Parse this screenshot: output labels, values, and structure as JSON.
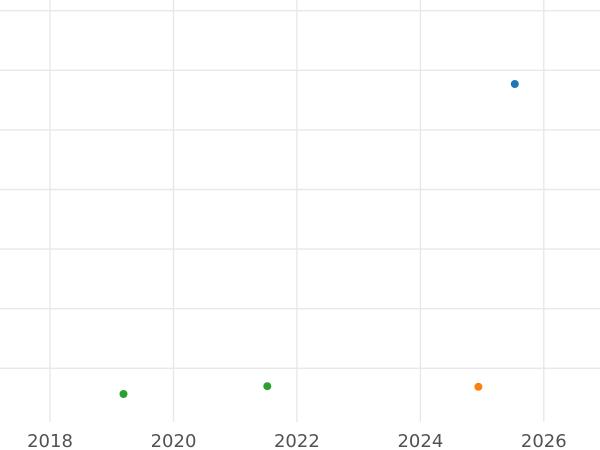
{
  "chart_data": {
    "type": "scatter",
    "title": "",
    "xlabel": "",
    "ylabel": "",
    "grid": true,
    "legend_position": "none",
    "y_axis_tick_labels_visible": false,
    "y_unit": "gridline-units (y axis unlabeled in image; bottom gridline = 0, one unit per gridline)",
    "x_ticks": [
      2018,
      2020,
      2022,
      2024,
      2026
    ],
    "x_tick_labels": [
      "2018",
      "2020",
      "2022",
      "2024",
      "2026"
    ],
    "x_range": [
      2017.19,
      2026.91
    ],
    "y_range": [
      -0.37,
      7.18
    ],
    "y_gridlines": [
      1,
      2,
      3,
      4,
      5,
      6,
      7
    ],
    "y_plot_min": 0.1,
    "series": [
      {
        "name": "blue-series",
        "color": "#1f77b4",
        "points": [
          {
            "x": 2025.53,
            "y": 5.77
          }
        ]
      },
      {
        "name": "orange-series",
        "color": "#ff7f0e",
        "points": [
          {
            "x": 2024.94,
            "y": 0.69
          }
        ]
      },
      {
        "name": "green-series",
        "color": "#2ca02c",
        "points": [
          {
            "x": 2019.19,
            "y": 0.57
          },
          {
            "x": 2021.52,
            "y": 0.7
          }
        ]
      }
    ],
    "marker_radius_px": 4,
    "tick_font_size_px": 18,
    "colors": {
      "background": "#ffffff",
      "grid": "#e8e8e8",
      "tick_label": "#525252"
    }
  }
}
